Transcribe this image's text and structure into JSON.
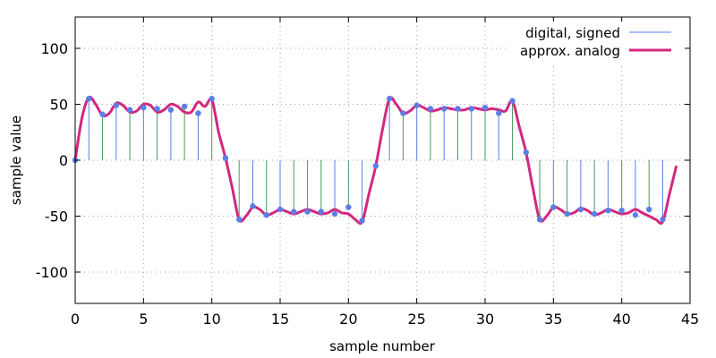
{
  "chart_data": {
    "type": "line",
    "title": "",
    "xlabel": "sample number",
    "ylabel": "sample value",
    "xlim": [
      0,
      45
    ],
    "ylim": [
      -128,
      128
    ],
    "xticks": [
      0,
      5,
      10,
      15,
      20,
      25,
      30,
      35,
      40,
      45
    ],
    "yticks": [
      -100,
      -50,
      0,
      50,
      100
    ],
    "grid": true,
    "legend_position": "top-right",
    "series": [
      {
        "name": "digital, signed",
        "style": "stems with dot markers",
        "color": "#5b7fe6",
        "x": [
          0,
          1,
          2,
          3,
          4,
          5,
          6,
          7,
          8,
          9,
          10,
          11,
          12,
          13,
          14,
          15,
          16,
          17,
          18,
          19,
          20,
          21,
          22,
          23,
          24,
          25,
          26,
          27,
          28,
          29,
          30,
          31,
          32,
          33,
          34,
          35,
          36,
          37,
          38,
          39,
          40,
          41,
          42,
          43
        ],
        "values": [
          0,
          55,
          41,
          49,
          45,
          47,
          46,
          45,
          48,
          42,
          55,
          2,
          -53,
          -41,
          -49,
          -44,
          -46,
          -46,
          -46,
          -48,
          -42,
          -54,
          -5,
          55,
          42,
          49,
          46,
          46,
          46,
          46,
          47,
          42,
          53,
          7,
          -53,
          -42,
          -48,
          -44,
          -48,
          -45,
          -45,
          -49,
          -44,
          -53
        ]
      },
      {
        "name": "approx. analog",
        "style": "smooth line",
        "color": "#d2287f",
        "x": [
          0,
          0.5,
          1,
          1.5,
          2,
          2.5,
          3,
          3.5,
          4,
          4.5,
          5,
          5.5,
          6,
          6.5,
          7,
          7.5,
          8,
          8.5,
          9,
          9.5,
          10,
          10.5,
          11,
          11.5,
          12,
          12.5,
          13,
          13.5,
          14,
          14.5,
          15,
          15.5,
          16,
          16.5,
          17,
          17.5,
          18,
          18.5,
          19,
          19.5,
          20,
          20.5,
          21,
          21.5,
          22,
          22.5,
          23,
          23.5,
          24,
          24.5,
          25,
          25.5,
          26,
          26.5,
          27,
          27.5,
          28,
          28.5,
          29,
          29.5,
          30,
          30.5,
          31,
          31.5,
          32,
          32.5,
          33,
          33.5,
          34,
          34.5,
          35,
          35.5,
          36,
          36.5,
          37,
          37.5,
          38,
          38.5,
          39,
          39.5,
          40,
          40.5,
          41,
          41.5,
          42,
          42.5,
          43,
          43.5,
          44
        ],
        "values": [
          0,
          38,
          56,
          50,
          40,
          42,
          51,
          49,
          43,
          44,
          50,
          49,
          43,
          45,
          50,
          48,
          43,
          43,
          52,
          48,
          54,
          25,
          2,
          -25,
          -53,
          -50,
          -42,
          -44,
          -49,
          -47,
          -44,
          -46,
          -48,
          -46,
          -44,
          -46,
          -48,
          -47,
          -44,
          -47,
          -48,
          -53,
          -55,
          -30,
          -5,
          28,
          55,
          50,
          42,
          44,
          49,
          47,
          44,
          45,
          47,
          46,
          45,
          45,
          47,
          46,
          45,
          46,
          45,
          44,
          53,
          30,
          7,
          -25,
          -53,
          -50,
          -42,
          -44,
          -48,
          -47,
          -43,
          -45,
          -49,
          -47,
          -44,
          -46,
          -48,
          -47,
          -44,
          -47,
          -50,
          -53,
          -55,
          -30,
          -5
        ]
      }
    ]
  }
}
